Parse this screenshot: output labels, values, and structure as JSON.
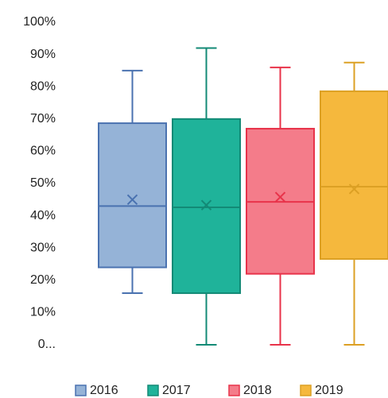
{
  "chart_data": {
    "type": "box",
    "ylim": [
      0,
      100
    ],
    "yticks": [
      {
        "value": 0,
        "label": "0..."
      },
      {
        "value": 10,
        "label": "10%"
      },
      {
        "value": 20,
        "label": "20%"
      },
      {
        "value": 30,
        "label": "30%"
      },
      {
        "value": 40,
        "label": "40%"
      },
      {
        "value": 50,
        "label": "50%"
      },
      {
        "value": 60,
        "label": "60%"
      },
      {
        "value": 70,
        "label": "70%"
      },
      {
        "value": 80,
        "label": "80%"
      },
      {
        "value": 90,
        "label": "90%"
      },
      {
        "value": 100,
        "label": "100%"
      }
    ],
    "series": [
      {
        "name": "2016",
        "color": "#95b3d7",
        "stroke": "#4a72b0",
        "min": 16,
        "q1": 24,
        "median": 43,
        "q3": 68.7,
        "max": 85,
        "mean": 45
      },
      {
        "name": "2017",
        "color": "#1fb39a",
        "stroke": "#138a76",
        "min": 0,
        "q1": 16,
        "median": 42.6,
        "q3": 70,
        "max": 92,
        "mean": 43.3
      },
      {
        "name": "2018",
        "color": "#f47c8a",
        "stroke": "#e8334a",
        "min": 0,
        "q1": 22,
        "median": 44.3,
        "q3": 67,
        "max": 86,
        "mean": 45.8
      },
      {
        "name": "2019",
        "color": "#f5b83d",
        "stroke": "#dca024",
        "min": 0,
        "q1": 26.6,
        "median": 49,
        "q3": 78.6,
        "max": 87.5,
        "mean": 48.3
      }
    ]
  }
}
